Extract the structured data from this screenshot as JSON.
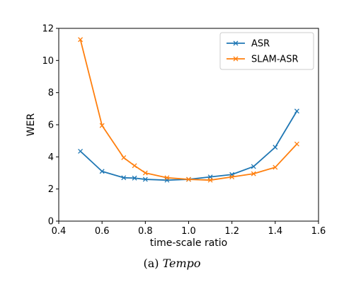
{
  "chart_data": {
    "type": "line",
    "title": "",
    "xlabel": "time-scale ratio",
    "ylabel": "WER",
    "xlim": [
      0.4,
      1.6
    ],
    "ylim": [
      0,
      12
    ],
    "xticks": [
      "0.4",
      "0.6",
      "0.8",
      "1.0",
      "1.2",
      "1.4",
      "1.6"
    ],
    "yticks": [
      "0",
      "2",
      "4",
      "6",
      "8",
      "10",
      "12"
    ],
    "grid": false,
    "legend_position": "top-right",
    "x": [
      0.5,
      0.6,
      0.7,
      0.75,
      0.8,
      0.9,
      1.0,
      1.1,
      1.2,
      1.3,
      1.4,
      1.5
    ],
    "series": [
      {
        "name": "ASR",
        "color": "#1f77b4",
        "marker": "x",
        "values": [
          4.35,
          3.1,
          2.7,
          2.68,
          2.6,
          2.55,
          2.6,
          2.75,
          2.9,
          3.4,
          4.6,
          6.85
        ]
      },
      {
        "name": "SLAM-ASR",
        "color": "#ff7f0e",
        "marker": "x",
        "values": [
          11.3,
          5.95,
          3.95,
          3.45,
          3.0,
          2.7,
          2.6,
          2.55,
          2.75,
          2.95,
          3.35,
          4.8
        ]
      }
    ]
  },
  "caption": {
    "prefix": "(a) ",
    "emphasis": "Tempo"
  }
}
